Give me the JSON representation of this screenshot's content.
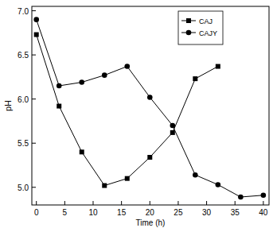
{
  "chart_data": {
    "type": "line",
    "x_label": "Time (h)",
    "y_label": "pH",
    "x": [
      0,
      4,
      8,
      12,
      16,
      20,
      24,
      28,
      32,
      36,
      40
    ],
    "series": [
      {
        "name": "CAJ",
        "color": "#000000",
        "marker": "square",
        "line_style": "solid",
        "values": [
          6.73,
          5.92,
          5.4,
          5.02,
          5.1,
          5.34,
          5.62,
          6.23,
          6.37,
          null,
          null
        ]
      },
      {
        "name": "CAJY",
        "color": "#000000",
        "marker": "circle",
        "line_style": "solid",
        "values": [
          6.9,
          6.15,
          6.19,
          6.27,
          6.37,
          6.02,
          5.7,
          5.14,
          5.03,
          4.89,
          4.91
        ]
      }
    ],
    "xlim": [
      -0.8,
      41
    ],
    "ylim": [
      4.8,
      7.05
    ],
    "xticks": [
      0,
      5,
      10,
      15,
      20,
      25,
      30,
      35,
      40
    ],
    "yticks": [
      {
        "value": 5,
        "label": "5.0"
      },
      {
        "value": 5.5,
        "label": "5.5"
      },
      {
        "value": 6,
        "label": "6.0"
      },
      {
        "value": 6.5,
        "label": "6.5"
      },
      {
        "value": 7,
        "label": "7.0"
      }
    ],
    "grid": false,
    "legend": "upper right"
  }
}
